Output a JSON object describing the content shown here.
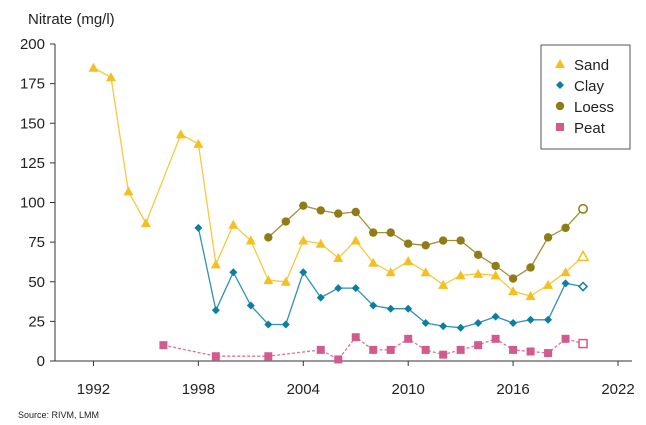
{
  "chart_data": {
    "type": "line",
    "title": "",
    "ylabel": "Nitrate (mg/l)",
    "xlabel": "",
    "source": "Source: RIVM, LMM",
    "xlim": [
      1989.8,
      2022.8
    ],
    "ylim": [
      0,
      200
    ],
    "xticks": [
      1992,
      1998,
      2004,
      2010,
      2016,
      2022
    ],
    "yticks": [
      0,
      25,
      50,
      75,
      100,
      125,
      150,
      175,
      200
    ],
    "grid": false,
    "legend_position": "top-right",
    "series": [
      {
        "name": "Sand",
        "color": "#f5bf1e",
        "marker": "triangle",
        "points": [
          [
            1992,
            185
          ],
          [
            1993,
            179
          ],
          [
            1994,
            107
          ],
          [
            1995,
            87
          ],
          [
            1997,
            143
          ],
          [
            1998,
            137
          ],
          [
            1999,
            61
          ],
          [
            2000,
            86
          ],
          [
            2001,
            76
          ],
          [
            2002,
            51
          ],
          [
            2003,
            50
          ],
          [
            2004,
            76
          ],
          [
            2005,
            74
          ],
          [
            2006,
            65
          ],
          [
            2007,
            76
          ],
          [
            2008,
            62
          ],
          [
            2009,
            56
          ],
          [
            2010,
            63
          ],
          [
            2011,
            56
          ],
          [
            2012,
            48
          ],
          [
            2013,
            54
          ],
          [
            2014,
            55
          ],
          [
            2015,
            54
          ],
          [
            2016,
            44
          ],
          [
            2017,
            41
          ],
          [
            2018,
            48
          ],
          [
            2019,
            56
          ]
        ],
        "provisional": [
          2020,
          66
        ]
      },
      {
        "name": "Clay",
        "color": "#0a7fa3",
        "marker": "diamond",
        "points": [
          [
            1998,
            84
          ],
          [
            1999,
            32
          ],
          [
            2000,
            56
          ],
          [
            2001,
            35
          ],
          [
            2002,
            23
          ],
          [
            2003,
            23
          ],
          [
            2004,
            56
          ],
          [
            2005,
            40
          ],
          [
            2006,
            46
          ],
          [
            2007,
            46
          ],
          [
            2008,
            35
          ],
          [
            2009,
            33
          ],
          [
            2010,
            33
          ],
          [
            2011,
            24
          ],
          [
            2012,
            22
          ],
          [
            2013,
            21
          ],
          [
            2014,
            24
          ],
          [
            2015,
            28
          ],
          [
            2016,
            24
          ],
          [
            2017,
            26
          ],
          [
            2018,
            26
          ],
          [
            2019,
            49
          ]
        ],
        "provisional": [
          2020,
          47
        ]
      },
      {
        "name": "Loess",
        "color": "#8f7c14",
        "marker": "circle",
        "points": [
          [
            2002,
            78
          ],
          [
            2003,
            88
          ],
          [
            2004,
            98
          ],
          [
            2005,
            95
          ],
          [
            2006,
            93
          ],
          [
            2007,
            94
          ],
          [
            2008,
            81
          ],
          [
            2009,
            81
          ],
          [
            2010,
            74
          ],
          [
            2011,
            73
          ],
          [
            2012,
            76
          ],
          [
            2013,
            76
          ],
          [
            2014,
            67
          ],
          [
            2015,
            60
          ],
          [
            2016,
            52
          ],
          [
            2017,
            59
          ],
          [
            2018,
            78
          ],
          [
            2019,
            84
          ]
        ],
        "provisional": [
          2020,
          96
        ]
      },
      {
        "name": "Peat",
        "color": "#d25b8e",
        "marker": "square",
        "dashed": true,
        "points": [
          [
            1996,
            10
          ],
          [
            1999,
            3
          ],
          [
            2002,
            3
          ],
          [
            2005,
            7
          ],
          [
            2006,
            1
          ],
          [
            2007,
            15
          ],
          [
            2008,
            7
          ],
          [
            2009,
            7
          ],
          [
            2010,
            14
          ],
          [
            2011,
            7
          ],
          [
            2012,
            4
          ],
          [
            2013,
            7
          ],
          [
            2014,
            10
          ],
          [
            2015,
            14
          ],
          [
            2016,
            7
          ],
          [
            2017,
            6
          ],
          [
            2018,
            5
          ],
          [
            2019,
            14
          ]
        ],
        "provisional": [
          2020,
          11
        ]
      }
    ]
  }
}
